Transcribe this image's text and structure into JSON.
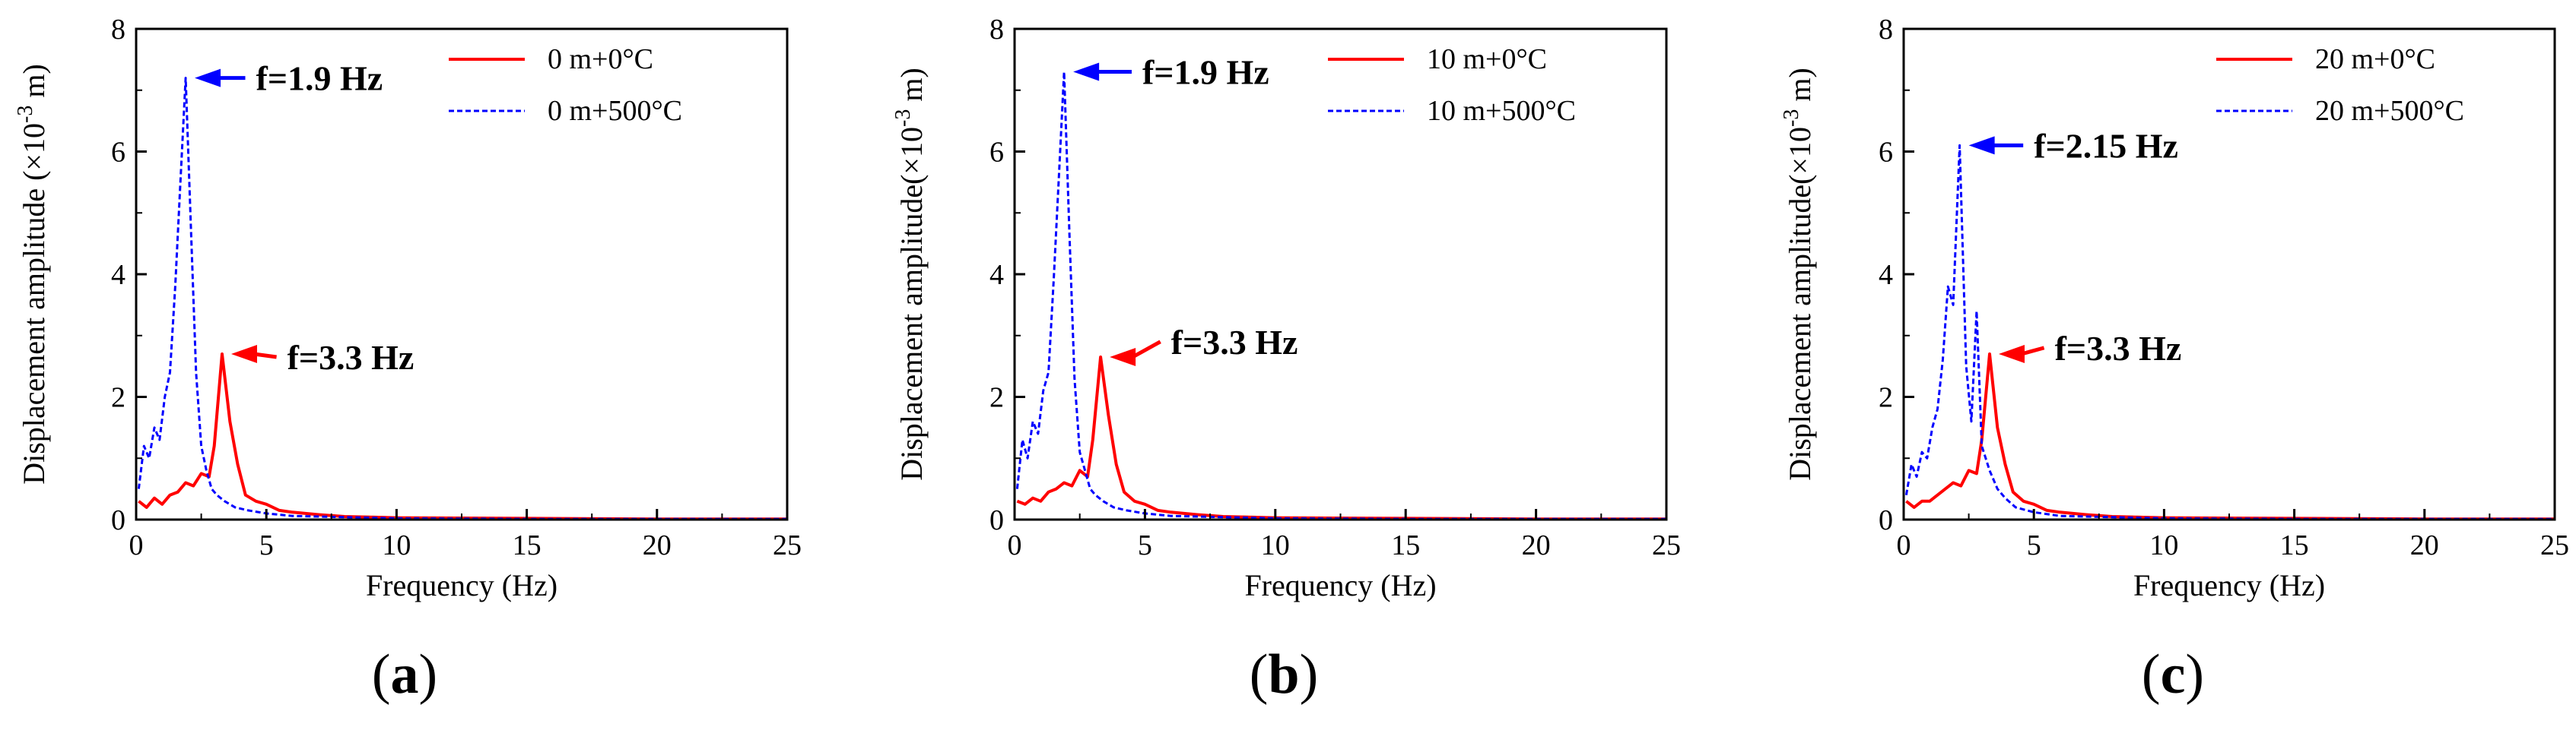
{
  "figure": {
    "panel_labels": [
      "a",
      "b",
      "c"
    ]
  },
  "chart_data": [
    {
      "type": "line",
      "panel": "a",
      "xlabel": "Frequency (Hz)",
      "ylabel_main": "Displacement amplitude (×10",
      "ylabel_exp": "-3",
      "ylabel_unit": " m)",
      "xlim": [
        0,
        25
      ],
      "ylim": [
        0,
        8
      ],
      "xticks": [
        "0",
        "5",
        "10",
        "15",
        "20",
        "25"
      ],
      "yticks": [
        "0",
        "2",
        "4",
        "6",
        "8"
      ],
      "legend_position": "top-right",
      "colors": {
        "cold": "#ff0000",
        "hot": "#0000ff"
      },
      "series": [
        {
          "name": "0 m+0°C",
          "style": "solid",
          "x": [
            0.1,
            0.4,
            0.7,
            1.0,
            1.3,
            1.6,
            1.9,
            2.2,
            2.5,
            2.8,
            3.0,
            3.3,
            3.6,
            3.9,
            4.2,
            4.6,
            5.0,
            5.5,
            6.0,
            7.0,
            8.0,
            10.0,
            15.0,
            20.0,
            25.0
          ],
          "values": [
            0.3,
            0.2,
            0.35,
            0.25,
            0.4,
            0.45,
            0.6,
            0.55,
            0.75,
            0.7,
            1.2,
            2.7,
            1.6,
            0.9,
            0.4,
            0.3,
            0.25,
            0.15,
            0.12,
            0.08,
            0.05,
            0.03,
            0.02,
            0.01,
            0.01
          ]
        },
        {
          "name": "0 m+500°C",
          "style": "dashed",
          "x": [
            0.1,
            0.3,
            0.5,
            0.7,
            0.9,
            1.1,
            1.3,
            1.5,
            1.7,
            1.9,
            2.1,
            2.3,
            2.5,
            2.7,
            2.9,
            3.1,
            3.4,
            3.8,
            4.3,
            5.0,
            6.0,
            8.0,
            10.0,
            15.0,
            20.0,
            25.0
          ],
          "values": [
            0.5,
            1.2,
            1.0,
            1.5,
            1.3,
            2.0,
            2.4,
            3.8,
            5.5,
            7.2,
            4.8,
            2.4,
            1.2,
            0.8,
            0.5,
            0.4,
            0.3,
            0.2,
            0.15,
            0.1,
            0.06,
            0.04,
            0.02,
            0.01,
            0.01,
            0.01
          ]
        }
      ],
      "annotations": [
        {
          "text": "f=1.9 Hz",
          "x": 1.9,
          "y": 7.2,
          "color": "#0000ff",
          "text_x": 4.6,
          "text_y": 7.2
        },
        {
          "text": "f=3.3 Hz",
          "x": 3.3,
          "y": 2.7,
          "color": "#ff0000",
          "text_x": 5.8,
          "text_y": 2.65
        }
      ]
    },
    {
      "type": "line",
      "panel": "b",
      "xlabel": "Frequency (Hz)",
      "ylabel_main": "Displacement amplitude(×10",
      "ylabel_exp": "-3",
      "ylabel_unit": " m)",
      "xlim": [
        0,
        25
      ],
      "ylim": [
        0,
        8
      ],
      "xticks": [
        "0",
        "5",
        "10",
        "15",
        "20",
        "25"
      ],
      "yticks": [
        "0",
        "2",
        "4",
        "6",
        "8"
      ],
      "legend_position": "top-right",
      "colors": {
        "cold": "#ff0000",
        "hot": "#0000ff"
      },
      "series": [
        {
          "name": "10 m+0°C",
          "style": "solid",
          "x": [
            0.1,
            0.4,
            0.7,
            1.0,
            1.3,
            1.6,
            1.9,
            2.2,
            2.5,
            2.8,
            3.0,
            3.3,
            3.6,
            3.9,
            4.2,
            4.6,
            5.0,
            5.5,
            6.0,
            7.0,
            8.0,
            10.0,
            15.0,
            20.0,
            25.0
          ],
          "values": [
            0.3,
            0.25,
            0.35,
            0.3,
            0.45,
            0.5,
            0.6,
            0.55,
            0.8,
            0.7,
            1.3,
            2.65,
            1.7,
            0.9,
            0.45,
            0.3,
            0.25,
            0.15,
            0.12,
            0.08,
            0.05,
            0.03,
            0.02,
            0.01,
            0.01
          ]
        },
        {
          "name": "10 m+500°C",
          "style": "dashed",
          "x": [
            0.1,
            0.3,
            0.5,
            0.7,
            0.9,
            1.1,
            1.3,
            1.5,
            1.7,
            1.9,
            2.1,
            2.3,
            2.5,
            2.7,
            2.9,
            3.1,
            3.4,
            3.8,
            4.3,
            5.0,
            6.0,
            8.0,
            10.0,
            15.0,
            20.0,
            25.0
          ],
          "values": [
            0.5,
            1.3,
            1.0,
            1.6,
            1.4,
            2.1,
            2.4,
            3.9,
            5.6,
            7.3,
            4.7,
            2.3,
            1.1,
            0.8,
            0.5,
            0.4,
            0.3,
            0.2,
            0.15,
            0.1,
            0.06,
            0.04,
            0.02,
            0.01,
            0.01,
            0.01
          ]
        }
      ],
      "annotations": [
        {
          "text": "f=1.9 Hz",
          "x": 1.9,
          "y": 7.3,
          "color": "#0000ff",
          "text_x": 4.9,
          "text_y": 7.3
        },
        {
          "text": "f=3.3 Hz",
          "x": 3.3,
          "y": 2.65,
          "color": "#ff0000",
          "text_x": 6.0,
          "text_y": 2.9
        }
      ]
    },
    {
      "type": "line",
      "panel": "c",
      "xlabel": "Frequency (Hz)",
      "ylabel_main": "Displacement amplitude(×10",
      "ylabel_exp": "-3",
      "ylabel_unit": " m)",
      "xlim": [
        0,
        25
      ],
      "ylim": [
        0,
        8
      ],
      "xticks": [
        "0",
        "5",
        "10",
        "15",
        "20",
        "25"
      ],
      "yticks": [
        "0",
        "2",
        "4",
        "6",
        "8"
      ],
      "legend_position": "top-right",
      "colors": {
        "cold": "#ff0000",
        "hot": "#0000ff"
      },
      "series": [
        {
          "name": "20 m+0°C",
          "style": "solid",
          "x": [
            0.1,
            0.4,
            0.7,
            1.0,
            1.3,
            1.6,
            1.9,
            2.2,
            2.5,
            2.8,
            3.0,
            3.3,
            3.6,
            3.9,
            4.2,
            4.6,
            5.0,
            5.5,
            6.0,
            7.0,
            8.0,
            10.0,
            15.0,
            20.0,
            25.0
          ],
          "values": [
            0.3,
            0.2,
            0.3,
            0.3,
            0.4,
            0.5,
            0.6,
            0.55,
            0.8,
            0.75,
            1.3,
            2.7,
            1.5,
            0.9,
            0.45,
            0.3,
            0.25,
            0.15,
            0.12,
            0.08,
            0.05,
            0.03,
            0.02,
            0.01,
            0.01
          ]
        },
        {
          "name": "20 m+500°C",
          "style": "dashed",
          "x": [
            0.1,
            0.3,
            0.5,
            0.7,
            0.9,
            1.1,
            1.3,
            1.5,
            1.7,
            1.9,
            2.15,
            2.4,
            2.6,
            2.8,
            3.0,
            3.3,
            3.6,
            3.9,
            4.3,
            5.0,
            6.0,
            8.0,
            10.0,
            15.0,
            20.0,
            25.0
          ],
          "values": [
            0.4,
            0.9,
            0.7,
            1.1,
            1.0,
            1.5,
            1.8,
            2.6,
            3.8,
            3.5,
            6.1,
            2.5,
            1.6,
            3.4,
            1.2,
            0.8,
            0.5,
            0.35,
            0.2,
            0.12,
            0.06,
            0.04,
            0.02,
            0.01,
            0.01,
            0.01
          ]
        }
      ],
      "annotations": [
        {
          "text": "f=2.15 Hz",
          "x": 2.15,
          "y": 6.1,
          "color": "#0000ff",
          "text_x": 5.0,
          "text_y": 6.1
        },
        {
          "text": "f=3.3 Hz",
          "x": 3.3,
          "y": 2.7,
          "color": "#ff0000",
          "text_x": 5.8,
          "text_y": 2.8
        }
      ]
    }
  ]
}
